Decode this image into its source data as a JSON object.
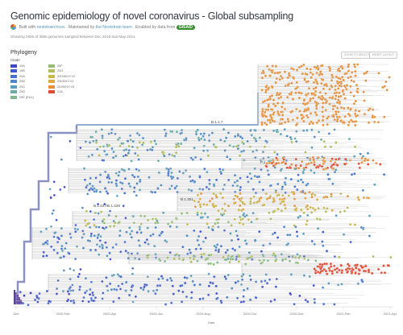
{
  "header": {
    "title": "Genomic epidemiology of novel coronavirus - Global subsampling",
    "byline_built": "Built with",
    "byline_nextstrain": "nextstrain/ncov",
    "byline_maintained": ". Maintained by",
    "byline_team": "the Nextstrain team",
    "byline_enabled": ". Enabled by data from",
    "gisaid_badge": "GISAID",
    "summary": "Showing 2925 of 3955 genomes sampled between Dec 2019 and May 2021."
  },
  "panel": {
    "section_title": "Phylogeny",
    "buttons": {
      "zoom_selected": "ZOOM TO SELECTED",
      "reset_layout": "RESET LAYOUT"
    },
    "legend_title": "Clade",
    "legend": [
      {
        "label": "19A",
        "color": "#3f47c9"
      },
      {
        "label": "19B",
        "color": "#4158cd"
      },
      {
        "label": "20A",
        "color": "#4871ce"
      },
      {
        "label": "20B",
        "color": "#4f8ac7"
      },
      {
        "label": "20C",
        "color": "#5b9ebb"
      },
      {
        "label": "20D",
        "color": "#69aca6"
      },
      {
        "label": "20E (EU1)",
        "color": "#7db78e"
      },
      {
        "label": "20F",
        "color": "#94bd73"
      },
      {
        "label": "20G",
        "color": "#b0bd5a"
      },
      {
        "label": "20H/501Y.V2",
        "color": "#c9b74a"
      },
      {
        "label": "20I/501Y.V1",
        "color": "#dea940"
      },
      {
        "label": "20J/501Y.V3",
        "color": "#e6903a"
      },
      {
        "label": "21A",
        "color": "#e04a33"
      }
    ],
    "branch_labels": [
      "B.1.1.7",
      "P.1",
      "B.1.351",
      "B.1.427/B.1.429"
    ],
    "x_ticks": [
      "Dec",
      "2020-Feb",
      "2020-Apr",
      "2020-Jun",
      "2020-Aug",
      "2020-Oct",
      "2020-Dec",
      "2021-Feb",
      "2021-Apr"
    ],
    "x_axis_label": "Date"
  },
  "colors": {
    "branch": "#b9b9b9",
    "trunk": "#8b91c4",
    "axis": "#cccccc"
  }
}
